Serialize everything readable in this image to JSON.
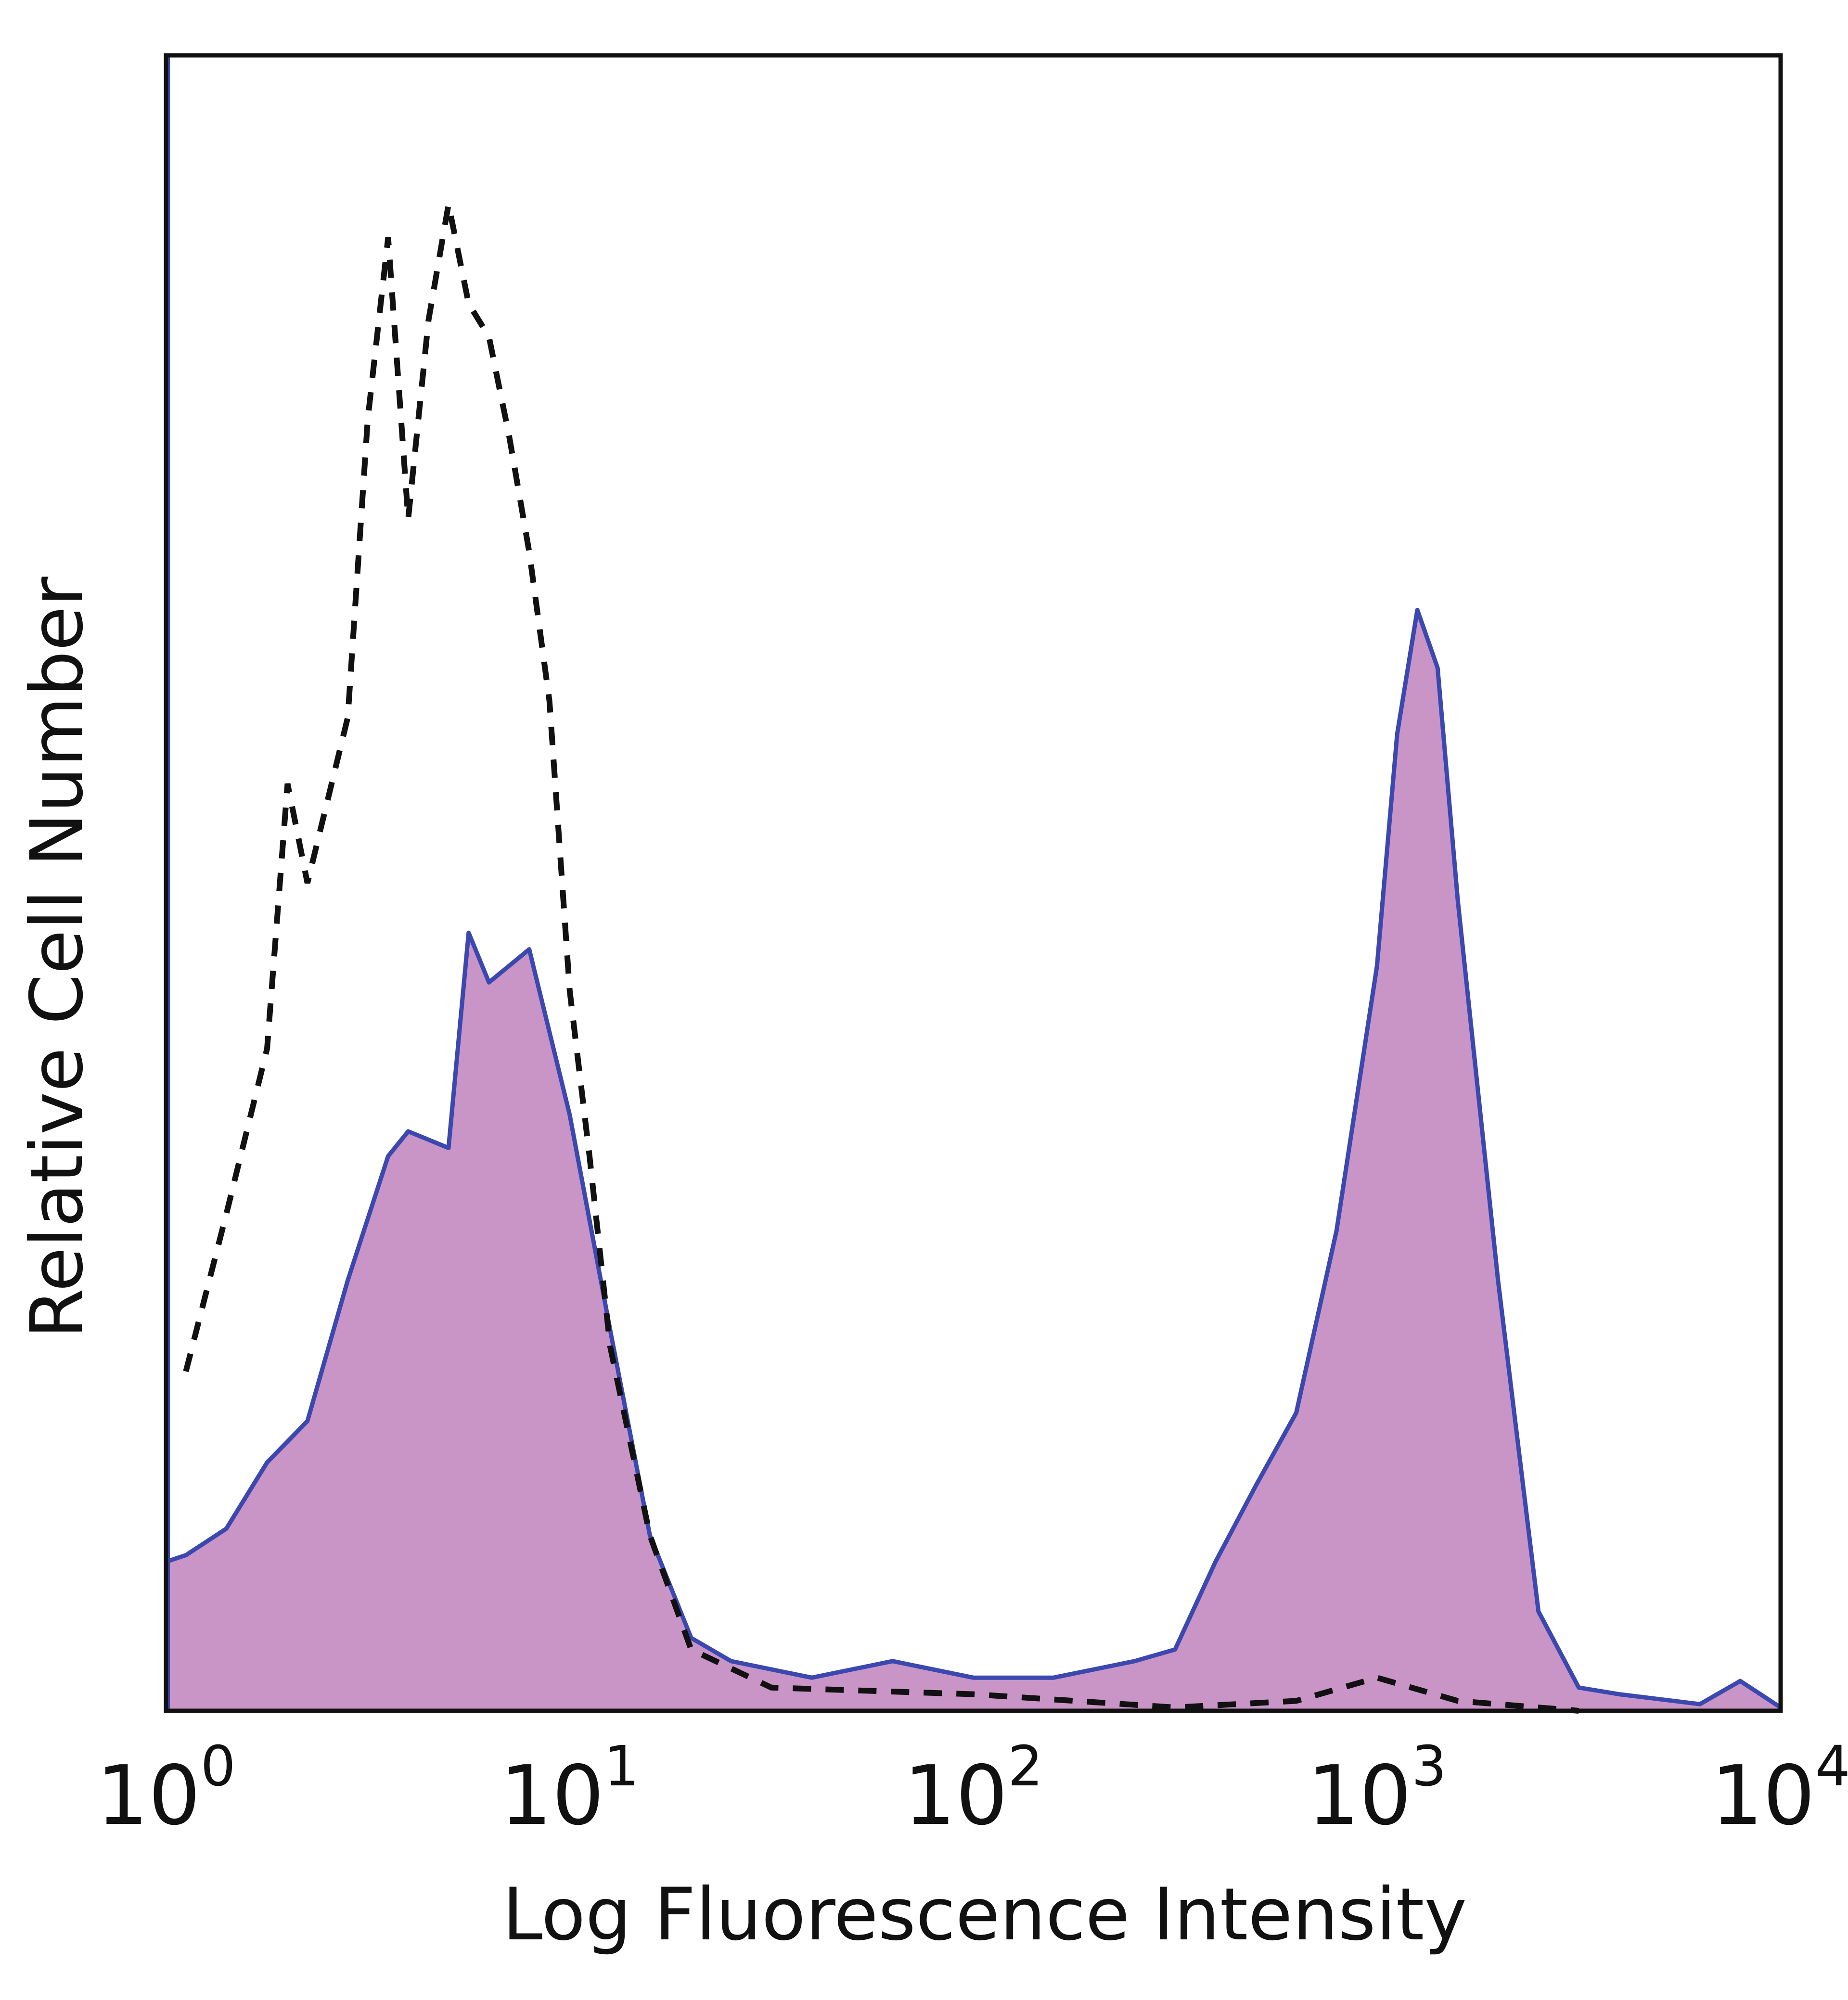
{
  "chart_data": {
    "type": "area",
    "title": "",
    "xlabel": "Log Fluorescence Intensity",
    "ylabel": "Relative Cell Number",
    "x_scale": "log",
    "xlim": [
      1,
      10000
    ],
    "ylim": [
      0,
      100
    ],
    "grid": false,
    "legend": "none",
    "x_ticks": [
      {
        "value": 1,
        "base": "10",
        "exp": "0"
      },
      {
        "value": 10,
        "base": "10",
        "exp": "1"
      },
      {
        "value": 100,
        "base": "10",
        "exp": "2"
      },
      {
        "value": 1000,
        "base": "10",
        "exp": "3"
      },
      {
        "value": 10000,
        "base": "10",
        "exp": "4"
      }
    ],
    "series": [
      {
        "style": "filled-solid",
        "fill_color": "#c995c6",
        "line_color": "#3b48b0",
        "x": [
          1,
          1.12,
          1.41,
          1.78,
          2.24,
          2.82,
          3.55,
          3.98,
          5.01,
          5.62,
          6.31,
          7.94,
          10,
          12.6,
          15.8,
          20,
          25.1,
          39.8,
          63.1,
          100,
          158,
          251,
          316,
          398,
          501,
          631,
          794,
          1000,
          1122,
          1259,
          1413,
          1585,
          1995,
          2512,
          3162,
          3981,
          6310,
          7943,
          10000
        ],
        "y": [
          9,
          9.4,
          11,
          15,
          17.5,
          26,
          33.5,
          35,
          34,
          47,
          44,
          46,
          36,
          23,
          10.6,
          4.4,
          3,
          2,
          3,
          2,
          2,
          3,
          3.7,
          9,
          13.6,
          18,
          29,
          45,
          59,
          66.5,
          63,
          49,
          26,
          6,
          1.4,
          1,
          0.4,
          1.8,
          0.2
        ]
      },
      {
        "style": "dashed",
        "line_color": "#111111",
        "x": [
          1.12,
          1.41,
          1.78,
          2.0,
          2.24,
          2.82,
          3.16,
          3.55,
          3.98,
          4.47,
          5.01,
          5.62,
          6.31,
          7.08,
          7.94,
          8.91,
          10,
          11.2,
          12.6,
          15.8,
          20,
          31.6,
          100,
          316,
          631,
          1000,
          1585,
          3162
        ],
        "y": [
          20.5,
          30,
          40,
          56,
          50,
          60,
          78,
          89,
          72,
          84,
          91,
          85,
          83,
          77,
          70,
          61,
          43.5,
          33.5,
          22,
          10.6,
          3.7,
          1.4,
          1,
          0.2,
          0.6,
          2,
          0.6,
          0
        ]
      }
    ]
  }
}
